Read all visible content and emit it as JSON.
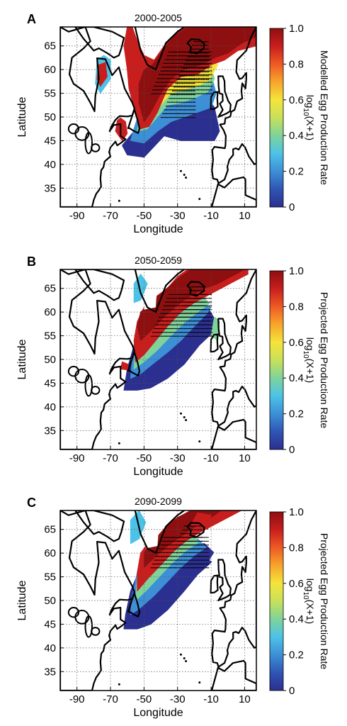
{
  "xlabel": "Longitude",
  "ylabel": "Latitude",
  "xticks": [
    "-90",
    "-70",
    "-50",
    "-30",
    "-10",
    "10"
  ],
  "yticks": [
    "65",
    "60",
    "55",
    "50",
    "45",
    "40",
    "35"
  ],
  "colorbar_ticks": [
    "1.0",
    "0.8",
    "0.6",
    "0.4",
    "0.2",
    "0"
  ],
  "colorbar_units": "log10(X+1)",
  "colormap": [
    "#2b2f8f",
    "#2f55b5",
    "#3d8fd6",
    "#4cc3e6",
    "#7fd39a",
    "#c8e05a",
    "#f5e43a",
    "#f7a52b",
    "#ee5a24",
    "#c81e1e",
    "#8e0f10"
  ],
  "panels": [
    {
      "letter": "A",
      "period": "2000-2005",
      "colorbar_label": "Modelled Egg Production Rate",
      "panel_top": 0
    },
    {
      "letter": "B",
      "period": "2050-2059",
      "colorbar_label": "Projected Egg Production Rate",
      "panel_top": 342
    },
    {
      "letter": "C",
      "period": "2090-2099",
      "colorbar_label": "Projected Egg Production Rate",
      "panel_top": 682
    }
  ]
}
